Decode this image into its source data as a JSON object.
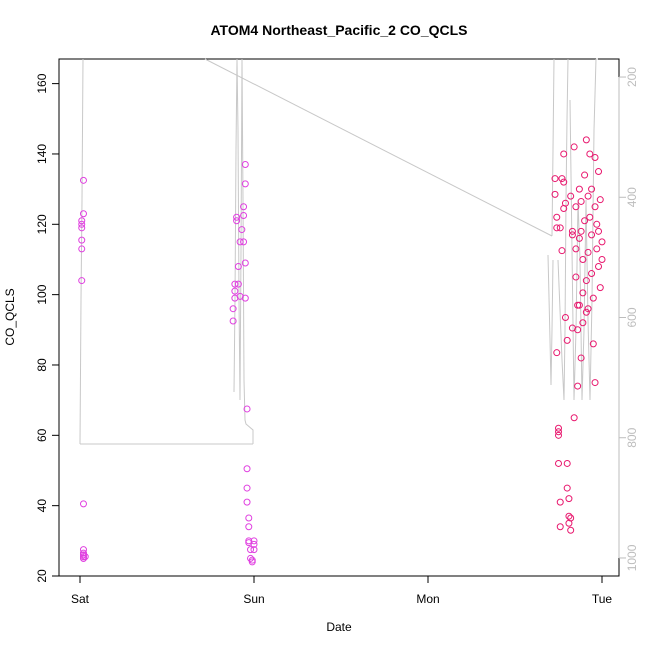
{
  "chart_data": {
    "type": "scatter",
    "title": "ATOM4 Northeast_Pacific_2 CO_QCLS",
    "xlabel": "Date",
    "ylabel": "CO_QCLS",
    "x_ticks": [
      "Sat",
      "Sun",
      "Mon",
      "Tue"
    ],
    "ylim": [
      20,
      167
    ],
    "y_ticks": [
      20,
      40,
      60,
      80,
      100,
      120,
      140,
      160
    ],
    "y2_ticks": [
      200,
      400,
      600,
      800,
      1000
    ],
    "y2lim": [
      1030,
      170
    ],
    "grid": false,
    "colors": {
      "points_early": "#e040e0",
      "points_late": "#e8186e",
      "line": "#c8c8c8"
    },
    "series": [
      {
        "x": [
          0.01,
          0.01,
          0.01,
          0.01,
          0.01,
          0.01,
          0.02,
          0.02,
          0.02,
          0.02,
          0.02,
          0.02,
          0.02,
          0.02,
          0.02,
          0.03
        ],
        "values": [
          104,
          113,
          115.5,
          119,
          120,
          121,
          123,
          132.5,
          40.5,
          27.5,
          26.5,
          26,
          25.5,
          25,
          25,
          25.5
        ]
      },
      {
        "x": [
          0.88,
          0.88,
          0.89,
          0.89,
          0.89,
          0.9,
          0.9,
          0.91,
          0.91,
          0.92,
          0.92,
          0.93,
          0.94,
          0.94,
          0.94,
          0.95,
          0.95,
          0.95,
          0.95,
          0.96,
          0.96,
          0.96,
          0.96,
          0.97,
          0.97,
          0.97,
          0.97,
          0.98,
          0.98,
          0.99,
          0.99,
          1.0,
          1.0,
          1.0
        ],
        "values": [
          92.5,
          96,
          99,
          101,
          103,
          121,
          122,
          103,
          108,
          115,
          99.5,
          118.5,
          125,
          122.5,
          115,
          131.5,
          137,
          99,
          109,
          67.5,
          50.5,
          45,
          41,
          36.5,
          34,
          29.5,
          30,
          27.5,
          25,
          24.5,
          24,
          30,
          29,
          27.5
        ]
      },
      {
        "x": [
          2.73,
          2.73,
          2.74,
          2.74,
          2.74,
          2.75,
          2.75,
          2.75,
          2.75,
          2.76,
          2.76,
          2.76,
          2.77,
          2.77,
          2.78,
          2.78,
          2.78,
          2.79,
          2.79,
          2.8,
          2.8,
          2.8,
          2.81,
          2.81,
          2.81,
          2.82,
          2.82,
          2.82,
          2.83,
          2.83,
          2.83,
          2.84,
          2.84,
          2.85,
          2.85,
          2.85,
          2.86,
          2.86,
          2.86,
          2.87,
          2.87,
          2.87,
          2.88,
          2.88,
          2.88,
          2.89,
          2.89,
          2.89,
          2.9,
          2.9,
          2.91,
          2.91,
          2.91,
          2.92,
          2.92,
          2.92,
          2.93,
          2.93,
          2.94,
          2.94,
          2.94,
          2.95,
          2.95,
          2.96,
          2.96,
          2.96,
          2.97,
          2.97,
          2.98,
          2.98,
          2.98,
          2.99,
          2.99,
          3.0,
          3.0
        ],
        "values": [
          133,
          128.5,
          122,
          119,
          83.5,
          62,
          61,
          60,
          52,
          41,
          34,
          119,
          112.5,
          133,
          124.5,
          140,
          132,
          126,
          93.5,
          87,
          52,
          45,
          42,
          37,
          35,
          33,
          36.5,
          128,
          118,
          117,
          90.5,
          65,
          142,
          125,
          113,
          105,
          97,
          90,
          74,
          130,
          116,
          97,
          82,
          126.5,
          118,
          100.5,
          92,
          110,
          134,
          121,
          104,
          95,
          144,
          128,
          112,
          96,
          140,
          122,
          106,
          130,
          117,
          99,
          86,
          75,
          139,
          125,
          120,
          113,
          135,
          118,
          108,
          127,
          102,
          110,
          115
        ]
      }
    ]
  }
}
